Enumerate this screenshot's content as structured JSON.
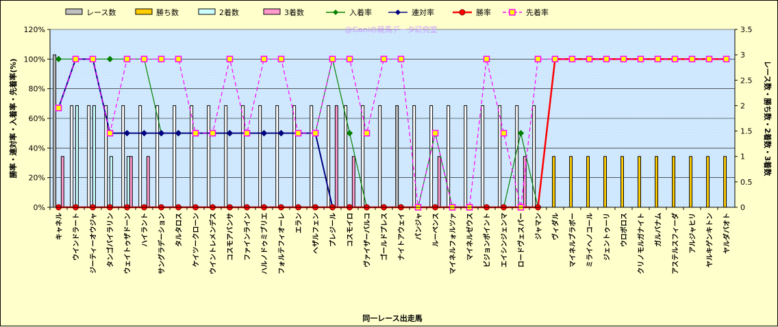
{
  "chart_data": {
    "type": "bar",
    "watermark": "@Ganiの競馬データ研究室",
    "xlabel": "同一レース出走馬",
    "ylabel_left": "勝率・連対率・入着率・先着率(%)",
    "ylabel_right": "レース数・勝ち数・2着数・3着数",
    "ylim_left": [
      0,
      120
    ],
    "yticks_left": [
      "0%",
      "20%",
      "40%",
      "60%",
      "80%",
      "100%",
      "120%"
    ],
    "ylim_right": [
      0,
      3.5
    ],
    "yticks_right": [
      "0",
      "0.5",
      "1",
      "1.5",
      "2",
      "2.5",
      "3",
      "3.5"
    ],
    "grid": true,
    "legend_position": "top",
    "categories": [
      "キャネル",
      "ウインドラート",
      "ジーティーオウジャ",
      "タンゴバイラリン",
      "ウェイトゥザドーン",
      "ハイラント",
      "サングラデーション",
      "タルタロス",
      "ケイツークローン",
      "ウイントレメンデス",
      "コスモアバンサ",
      "ファインライン",
      "ハルノドゥミブリエ",
      "フォルテフィオーレ",
      "エラン",
      "ヘザルフェン",
      "プレジール",
      "コスモイロ",
      "ヴァイザーバルコ",
      "ゴールドプレス",
      "ナイトアウェイ",
      "パンジャ",
      "ルーペンス",
      "マイネルフォルツァ",
      "マイネルゼウス",
      "ビジョンポイント",
      "エイシンジェンマ",
      "ロードヴェスパー",
      "ジャマン",
      "ヴィダル",
      "マイネルブラボー",
      "ミライヘノコール",
      "ジェントゥーリ",
      "ウロボロス",
      "クリノモルガナイト",
      "ガルバナム",
      "アステルスフィーダ",
      "アルジャヒリ",
      "ヤルキゲンキトン",
      "ヤルダバオト"
    ],
    "series": [
      {
        "name": "レース数",
        "kind": "bar",
        "axis": "right",
        "color": "#ffffff",
        "values": [
          3,
          2,
          2,
          2,
          2,
          2,
          2,
          2,
          2,
          2,
          2,
          2,
          2,
          2,
          2,
          2,
          2,
          2,
          2,
          2,
          2,
          2,
          2,
          2,
          2,
          2,
          2,
          2,
          2,
          0,
          0,
          0,
          0,
          0,
          0,
          0,
          0,
          0,
          0,
          0
        ]
      },
      {
        "name": "勝ち数",
        "kind": "bar",
        "axis": "right",
        "color": "#ffcc00",
        "values": [
          0,
          0,
          0,
          0,
          0,
          0,
          0,
          0,
          0,
          0,
          0,
          0,
          0,
          0,
          0,
          0,
          0,
          0,
          0,
          0,
          0,
          0,
          0,
          0,
          0,
          0,
          0,
          0,
          0,
          1,
          1,
          1,
          1,
          1,
          1,
          1,
          1,
          1,
          1,
          1
        ]
      },
      {
        "name": "2着数",
        "kind": "bar",
        "axis": "right",
        "color": "#ccffff",
        "values": [
          0,
          2,
          2,
          1,
          1,
          0,
          0,
          0,
          0,
          0,
          0,
          0,
          0,
          0,
          0,
          0,
          0,
          0,
          0,
          0,
          0,
          0,
          0,
          0,
          0,
          0,
          0,
          0,
          0,
          0,
          0,
          0,
          0,
          0,
          0,
          0,
          0,
          0,
          0,
          0
        ]
      },
      {
        "name": "3着数",
        "kind": "bar",
        "axis": "right",
        "color": "#ff99cc",
        "values": [
          1,
          0,
          0,
          0,
          1,
          1,
          0,
          0,
          0,
          0,
          0,
          0,
          0,
          0,
          0,
          0,
          2,
          1,
          0,
          0,
          0,
          0,
          1,
          0,
          0,
          0,
          0,
          1,
          0,
          0,
          0,
          0,
          0,
          0,
          0,
          0,
          0,
          0,
          0,
          0
        ]
      },
      {
        "name": "入着率",
        "kind": "line",
        "axis": "left",
        "color": "#008000",
        "marker": "diamond",
        "values": [
          100,
          100,
          100,
          100,
          100,
          100,
          50,
          50,
          50,
          50,
          50,
          50,
          50,
          50,
          50,
          50,
          100,
          50,
          0,
          0,
          0,
          0,
          50,
          0,
          0,
          0,
          0,
          50,
          0,
          100,
          100,
          100,
          100,
          100,
          100,
          100,
          100,
          100,
          100,
          100
        ]
      },
      {
        "name": "連対率",
        "kind": "line",
        "axis": "left",
        "color": "#000080",
        "marker": "diamond",
        "values": [
          67,
          100,
          100,
          50,
          50,
          50,
          50,
          50,
          50,
          50,
          50,
          50,
          50,
          50,
          50,
          50,
          0,
          0,
          0,
          0,
          0,
          0,
          0,
          0,
          0,
          0,
          0,
          0,
          0,
          100,
          100,
          100,
          100,
          100,
          100,
          100,
          100,
          100,
          100,
          100
        ]
      },
      {
        "name": "勝率",
        "kind": "line",
        "axis": "left",
        "color": "#ff0000",
        "marker": "circle",
        "values": [
          0,
          0,
          0,
          0,
          0,
          0,
          0,
          0,
          0,
          0,
          0,
          0,
          0,
          0,
          0,
          0,
          0,
          0,
          0,
          0,
          0,
          0,
          0,
          0,
          0,
          0,
          0,
          0,
          0,
          100,
          100,
          100,
          100,
          100,
          100,
          100,
          100,
          100,
          100,
          100
        ]
      },
      {
        "name": "先着率",
        "kind": "line",
        "axis": "left",
        "color": "#ff00ff",
        "marker": "square",
        "dashed": true,
        "values": [
          67,
          100,
          100,
          50,
          100,
          100,
          100,
          100,
          50,
          50,
          100,
          50,
          100,
          100,
          50,
          50,
          100,
          100,
          50,
          100,
          100,
          0,
          50,
          0,
          0,
          100,
          50,
          0,
          100,
          100,
          100,
          100,
          100,
          100,
          100,
          100,
          100,
          100,
          100,
          100
        ]
      }
    ]
  }
}
